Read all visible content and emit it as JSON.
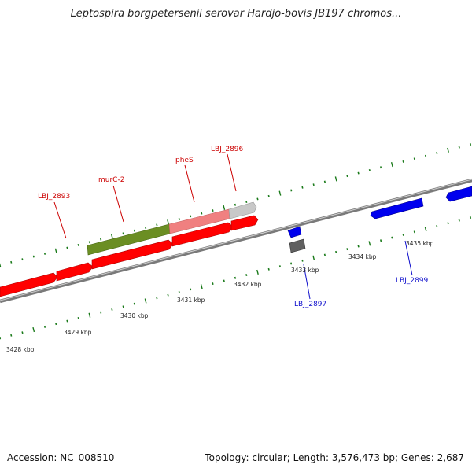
{
  "title": "Leptospira borgpetersenii serovar Hardjo-bovis JB197 chromos...",
  "footer": {
    "accession": "Accession: NC_008510",
    "summary": "Topology: circular; Length: 3,576,473 bp; Genes: 2,687"
  },
  "colors": {
    "forward_gene": "#ff0000",
    "reverse_gene": "#0000ee",
    "highlight_gene": "#6b8e23",
    "pale_gene": "#f08080",
    "grey_gene": "#c8c8c8",
    "dark_gene": "#606060",
    "tick": "#1a7a1a",
    "backbone": "#8a8a8a"
  },
  "scale_labels": [
    "3428 kbp",
    "3429 kbp",
    "3430 kbp",
    "3431 kbp",
    "3432 kbp",
    "3433 kbp",
    "3434 kbp",
    "3435 kbp"
  ],
  "gene_labels": {
    "top": [
      "LBJ_2893",
      "murC-2",
      "pheS",
      "LBJ_2896"
    ],
    "bottom": [
      "LBJ_2897",
      "LBJ_2899"
    ]
  }
}
